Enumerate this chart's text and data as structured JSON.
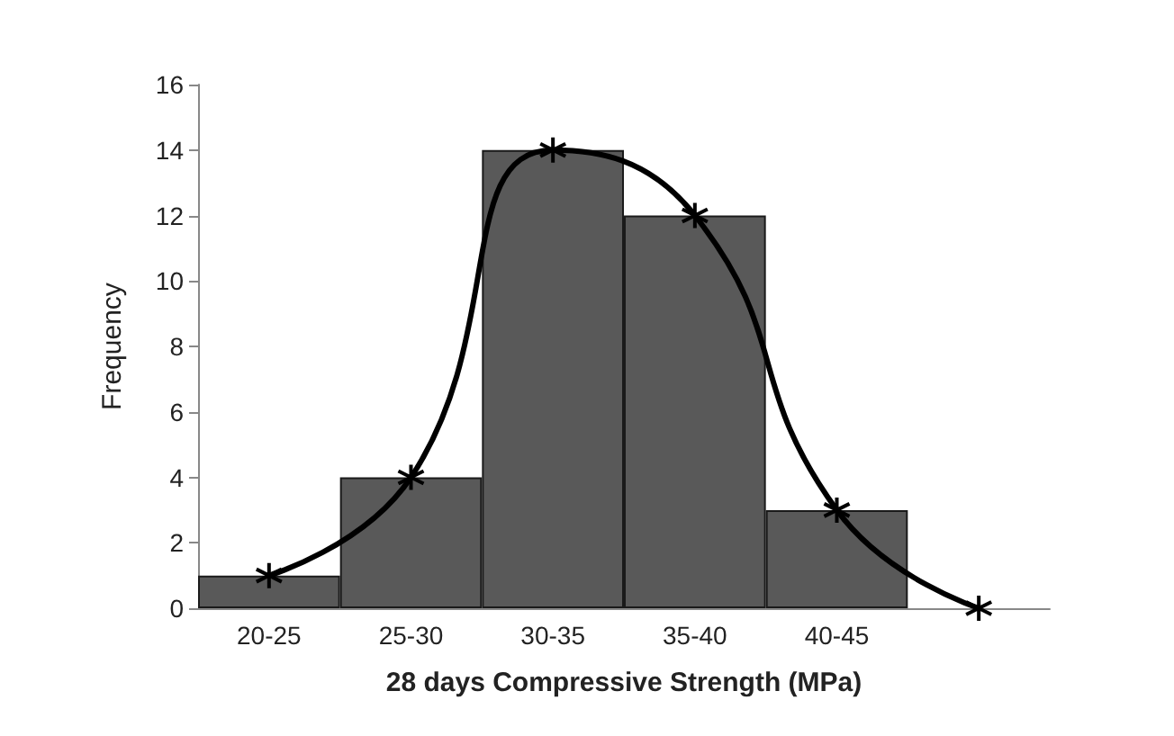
{
  "chart_data": {
    "type": "bar",
    "xlabel": "28 days Compressive Strength (MPa)",
    "ylabel": "Frequency",
    "categories": [
      "20-25",
      "25-30",
      "30-35",
      "35-40",
      "40-45",
      null
    ],
    "ylim": [
      0,
      16
    ],
    "yticks": [
      0,
      2,
      4,
      6,
      8,
      10,
      12,
      14,
      16
    ],
    "grid": false,
    "series": [
      {
        "color": "#595959",
        "values": [
          1,
          4,
          14,
          12,
          3,
          null
        ]
      },
      {
        "type": "line",
        "color": "#000000",
        "marker": "cross",
        "values": [
          1,
          4,
          14,
          12,
          3,
          0
        ]
      }
    ]
  }
}
